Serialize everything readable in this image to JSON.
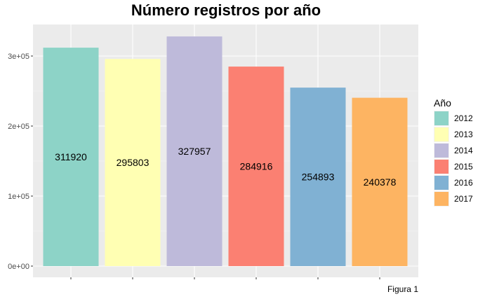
{
  "chart_data": {
    "type": "bar",
    "title": "Número registros por año",
    "xlabel": "",
    "ylabel": "",
    "categories": [
      "2012",
      "2013",
      "2014",
      "2015",
      "2016",
      "2017"
    ],
    "values": [
      311920,
      295803,
      327957,
      284916,
      254893,
      240378
    ],
    "colors": [
      "#8DD3C7",
      "#FFFFB3",
      "#BEBADA",
      "#FB8072",
      "#80B1D3",
      "#FDB462"
    ],
    "ylim": [
      0,
      345000
    ],
    "yticks": [
      0,
      100000,
      200000,
      300000
    ],
    "ytick_labels": [
      "0e+00",
      "1e+05",
      "2e+05",
      "3e+05"
    ],
    "grid": true,
    "legend": {
      "title": "Año",
      "position": "right",
      "entries": [
        "2012",
        "2013",
        "2014",
        "2015",
        "2016",
        "2017"
      ]
    },
    "caption": "Figura 1"
  }
}
